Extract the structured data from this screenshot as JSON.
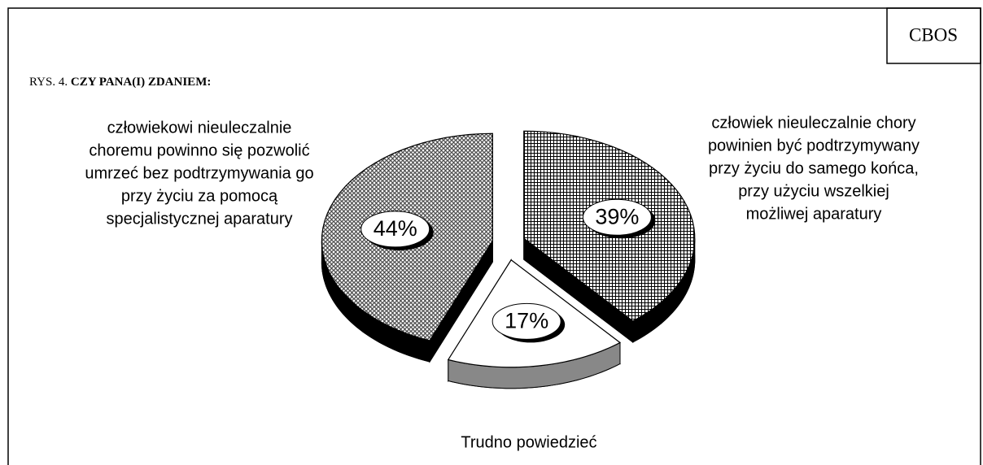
{
  "chart_data": {
    "type": "pie",
    "source": "CBOS",
    "title_prefix": "RYS. 4.",
    "title": "CZY PANA(I) ZDANIEM:",
    "categories": [
      [
        "człowiek nieuleczalnie chory",
        "powinien być podtrzymywany",
        "przy życiu do samego końca,",
        "przy użyciu wszelkiej",
        "możliwej aparatury"
      ],
      [
        "Trudno powiedzieć"
      ],
      [
        "człowiekowi nieuleczalnie",
        "choremu powinno się pozwolić",
        "umrzeć bez podtrzymywania go",
        "przy życiu za pomocą",
        "specjalistycznej aparatury"
      ]
    ],
    "values": [
      39,
      17,
      44
    ],
    "value_labels": [
      "39%",
      "17%",
      "44%"
    ],
    "colors": [
      "grid",
      "#ffffff",
      "dots"
    ]
  }
}
